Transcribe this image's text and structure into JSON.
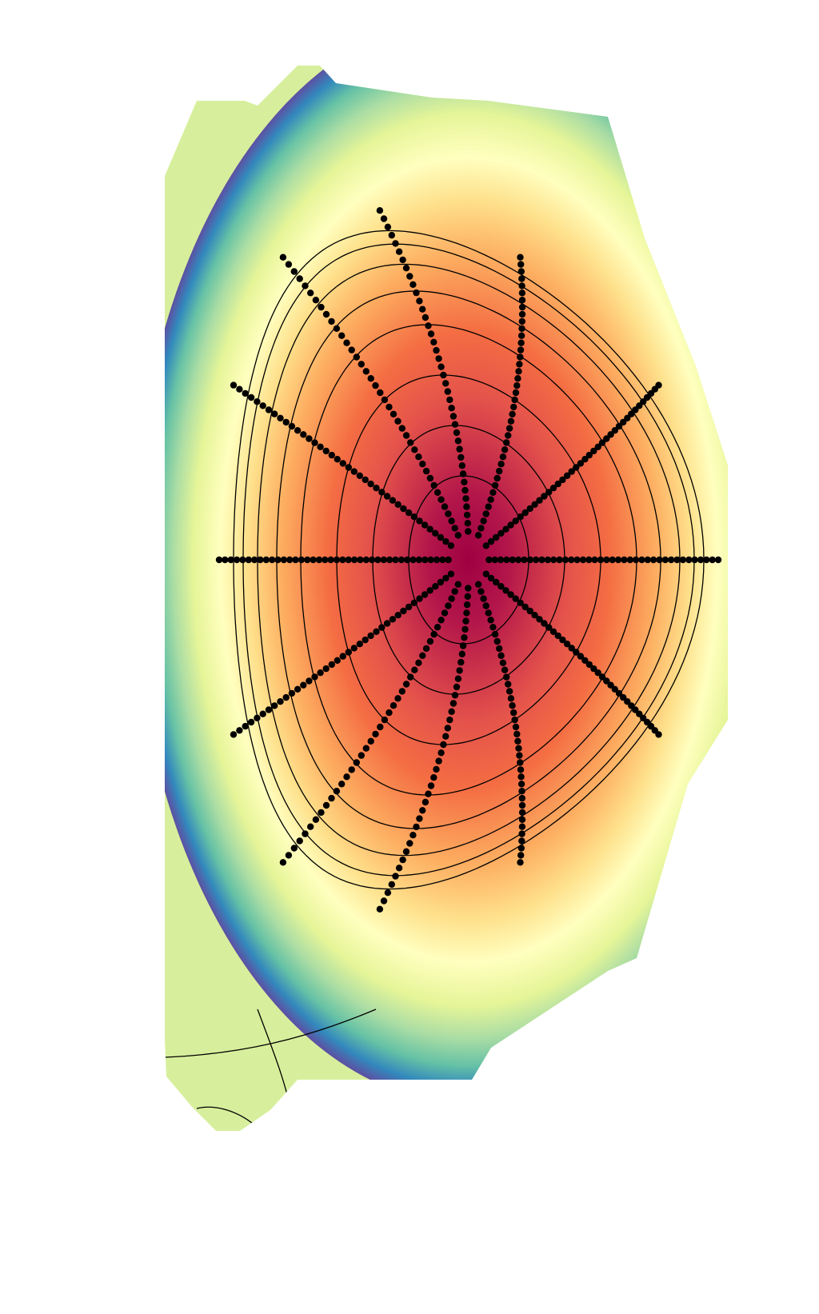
{
  "figure": {
    "type": "flux-surface-contour-map",
    "colormap": "spectral-reversed",
    "colors": {
      "core": "#9e0142",
      "mid": "#f46d43",
      "light": "#ffffbf",
      "edge_green": "#66c2a5",
      "edge_blue": "#3288bd",
      "edge_purple": "#5e4fa2",
      "contour": "#000000",
      "points": "#000000"
    },
    "contour_levels": [
      0.25,
      0.4,
      0.55,
      0.7,
      0.8,
      0.88,
      0.94,
      0.98
    ],
    "ray_count": 12,
    "points_per_ray": 40
  }
}
